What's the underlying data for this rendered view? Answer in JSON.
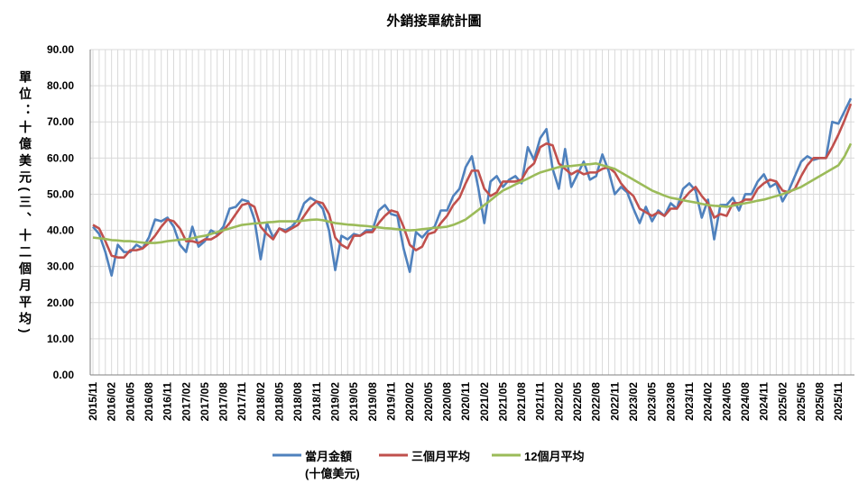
{
  "chart_data": {
    "type": "line",
    "title": "外銷接單統計圖",
    "y_label": "單位：十億美元(三、十二個月平均)",
    "categories": [
      "2015/11",
      null,
      null,
      "2016/02",
      null,
      null,
      "2016/05",
      null,
      null,
      "2016/08",
      null,
      null,
      "2016/11",
      null,
      null,
      "2017/02",
      null,
      null,
      "2017/05",
      null,
      null,
      "2017/08",
      null,
      null,
      "2017/11",
      null,
      null,
      "2018/02",
      null,
      null,
      "2018/05",
      null,
      null,
      "2018/08",
      null,
      null,
      "2018/11",
      null,
      null,
      "2019/02",
      null,
      null,
      "2019/05",
      null,
      null,
      "2019/08",
      null,
      null,
      "2019/11",
      null,
      null,
      "2020/02",
      null,
      null,
      "2020/05",
      null,
      null,
      "2020/08",
      null,
      null,
      "2020/11",
      null,
      null,
      "2021/02",
      null,
      null,
      "2021/05",
      null,
      null,
      "2021/08",
      null,
      null,
      "2021/11",
      null,
      null,
      "2022/02",
      null,
      null,
      "2022/05",
      null,
      null,
      "2022/08",
      null,
      null,
      "2022/11",
      null,
      null,
      "2023/02",
      null,
      null,
      "2023/05",
      null,
      null,
      "2023/08",
      null,
      null,
      "2023/11",
      null,
      null,
      "2024/02",
      null,
      null,
      "2024/05",
      null,
      null,
      "2024/08",
      null,
      null,
      "2024/11",
      null,
      null,
      "2025/02",
      null,
      null,
      "2025/05",
      null,
      null,
      "2025/08",
      null,
      null,
      "2025/11",
      null,
      null
    ],
    "series": [
      {
        "name": "當月金額 (十億美元)",
        "color": "#4f81bd",
        "values": [
          41,
          39,
          34,
          27.5,
          36,
          34,
          34,
          36,
          35,
          38,
          43,
          42.5,
          43.5,
          41,
          36,
          34,
          41,
          35.5,
          37,
          40,
          39,
          41,
          46,
          46.5,
          48.5,
          48,
          43,
          32,
          42,
          38,
          40.5,
          40,
          41,
          43,
          47.5,
          49,
          48,
          46,
          40,
          29,
          38.5,
          37.5,
          39,
          38.5,
          40,
          40,
          45.5,
          47,
          44.5,
          44,
          35,
          28.5,
          39.5,
          38,
          40,
          41,
          45.5,
          45.5,
          49.5,
          51.5,
          57.5,
          60.5,
          52,
          42,
          53.5,
          55,
          52,
          54,
          55,
          53,
          63,
          59.5,
          65.5,
          68,
          57,
          51.5,
          62.5,
          52,
          55.5,
          59,
          54,
          55,
          61,
          56.5,
          50,
          52,
          50.5,
          46,
          42,
          46.5,
          42.5,
          45.5,
          44,
          47.5,
          46,
          51.5,
          53,
          51,
          43.5,
          48.5,
          37.5,
          47,
          47,
          49,
          45.5,
          50,
          50,
          53.5,
          55.5,
          52,
          53,
          48,
          51,
          55,
          59,
          60.5,
          59.5,
          60,
          60,
          70,
          69.5,
          73,
          76.5
        ]
      },
      {
        "name": "三個月平均",
        "color": "#c0504d",
        "values": [
          41.5,
          40.5,
          37,
          33,
          32.5,
          32.5,
          34.5,
          34.5,
          35,
          36.5,
          38.5,
          41,
          43,
          42.5,
          40.5,
          37,
          37,
          36.5,
          37.5,
          37.5,
          38.5,
          40,
          42,
          44.5,
          47,
          47.5,
          46.5,
          41,
          39,
          37.5,
          40.5,
          39.5,
          40.5,
          41.5,
          44,
          46.5,
          48,
          47.5,
          44.5,
          38,
          36,
          35,
          38.5,
          38.5,
          39.5,
          39.5,
          42,
          44,
          45.5,
          45,
          41,
          36,
          34.5,
          35.5,
          39,
          39.5,
          42,
          44,
          47,
          49,
          53,
          56.5,
          56.5,
          51.5,
          49.5,
          50.5,
          53.5,
          53.5,
          53.5,
          54,
          57,
          58.5,
          63,
          64,
          63.5,
          58.5,
          57,
          55.5,
          56.5,
          55.5,
          56,
          56,
          57,
          57.5,
          56,
          53,
          51,
          49.5,
          46,
          45,
          44,
          45,
          44,
          46,
          46,
          48.5,
          50.5,
          52,
          49.5,
          47.5,
          43.5,
          44.5,
          44,
          47.5,
          47.5,
          48.5,
          48.5,
          51.5,
          53,
          54,
          53.5,
          51,
          50.5,
          51.5,
          55,
          58,
          60,
          60,
          60,
          63,
          66.5,
          70.5,
          75
        ]
      },
      {
        "name": "12個月平均",
        "color": "#9bbb59",
        "values": [
          38,
          37.8,
          37.6,
          37.3,
          37.2,
          37,
          37,
          36.8,
          36.6,
          36.5,
          36.5,
          36.7,
          37,
          37.2,
          37.4,
          37.5,
          37.8,
          38.2,
          38.5,
          39,
          39.5,
          40,
          40.5,
          41,
          41.5,
          41.7,
          41.9,
          42,
          42.2,
          42.3,
          42.5,
          42.5,
          42.5,
          42.5,
          42.7,
          42.9,
          43,
          42.8,
          42.4,
          42,
          41.8,
          41.6,
          41.5,
          41.3,
          41.2,
          41,
          40.8,
          40.6,
          40.5,
          40.3,
          40.1,
          40,
          40.1,
          40.3,
          40.5,
          40.7,
          40.8,
          41,
          41.5,
          42.2,
          43,
          44.3,
          45.6,
          47,
          48.3,
          49.7,
          51,
          51.8,
          52.7,
          53.5,
          54.3,
          55.2,
          56,
          56.5,
          57,
          57.5,
          57.7,
          57.8,
          58,
          58.2,
          58.3,
          58.5,
          58,
          57.5,
          57,
          56,
          55,
          54,
          53,
          52,
          51,
          50.3,
          49.6,
          49,
          48.7,
          48.3,
          48,
          47.7,
          47.3,
          47,
          46.8,
          46.7,
          46.5,
          46.8,
          47.2,
          47.5,
          47.8,
          48.2,
          48.5,
          49,
          49.5,
          50,
          50.7,
          51.3,
          52,
          53,
          54,
          55,
          56,
          57,
          58,
          60.5,
          64
        ]
      }
    ],
    "ylim": [
      0,
      90
    ],
    "yticks": [
      {
        "value": 0,
        "label": "0.00"
      },
      {
        "value": 10,
        "label": "10.00"
      },
      {
        "value": 20,
        "label": "20.00"
      },
      {
        "value": 30,
        "label": "30.00"
      },
      {
        "value": 40,
        "label": "40.00"
      },
      {
        "value": 50,
        "label": "50.00"
      },
      {
        "value": 60,
        "label": "60.00"
      },
      {
        "value": 70,
        "label": "70.00"
      },
      {
        "value": 80,
        "label": "80.00"
      },
      {
        "value": 90,
        "label": "90.00"
      }
    ],
    "grid": true
  }
}
